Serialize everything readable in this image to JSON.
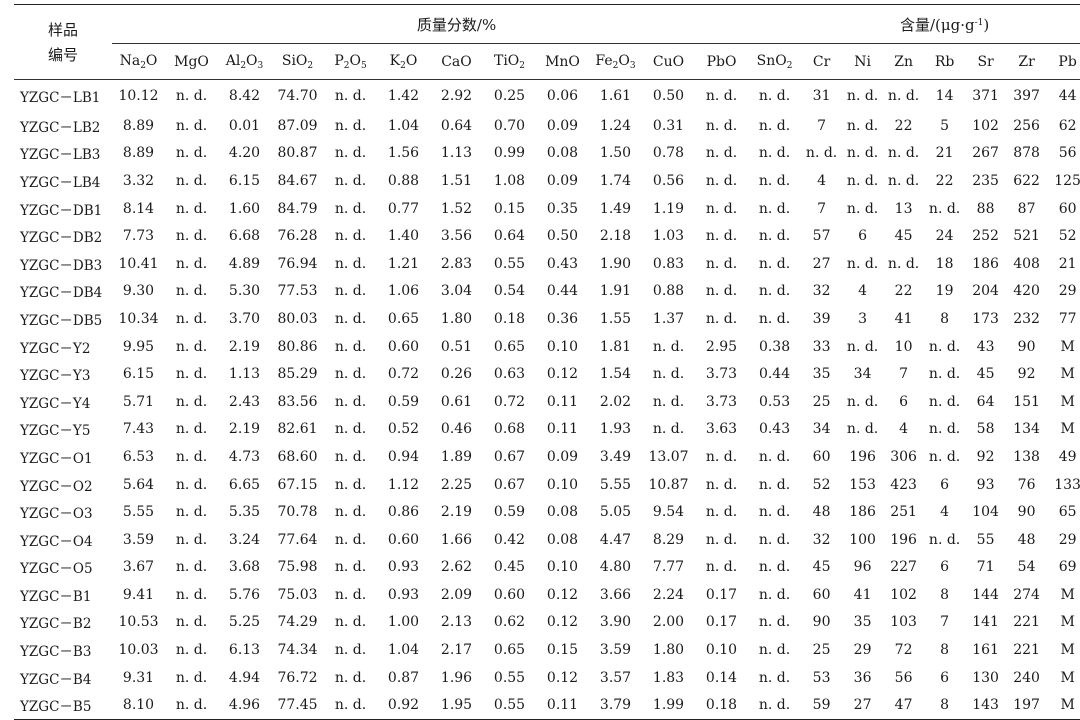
{
  "header": {
    "sample_label_line1": "样品",
    "sample_label_line2": "编号",
    "group_mass_fraction": "质量分数/%",
    "group_content": "含量/(μg·g",
    "group_content_sup": "-1",
    "group_content_close": ")"
  },
  "oxide_columns": [
    {
      "base": "Na",
      "sub1": "2",
      "rest": "O",
      "sub2": ""
    },
    {
      "base": "MgO",
      "sub1": "",
      "rest": "",
      "sub2": ""
    },
    {
      "base": "Al",
      "sub1": "2",
      "rest": "O",
      "sub2": "3"
    },
    {
      "base": "SiO",
      "sub1": "2",
      "rest": "",
      "sub2": ""
    },
    {
      "base": "P",
      "sub1": "2",
      "rest": "O",
      "sub2": "5"
    },
    {
      "base": "K",
      "sub1": "2",
      "rest": "O",
      "sub2": ""
    },
    {
      "base": "CaO",
      "sub1": "",
      "rest": "",
      "sub2": ""
    },
    {
      "base": "TiO",
      "sub1": "2",
      "rest": "",
      "sub2": ""
    },
    {
      "base": "MnO",
      "sub1": "",
      "rest": "",
      "sub2": ""
    },
    {
      "base": "Fe",
      "sub1": "2",
      "rest": "O",
      "sub2": "3"
    },
    {
      "base": "CuO",
      "sub1": "",
      "rest": "",
      "sub2": ""
    },
    {
      "base": "PbO",
      "sub1": "",
      "rest": "",
      "sub2": ""
    },
    {
      "base": "SnO",
      "sub1": "2",
      "rest": "",
      "sub2": ""
    }
  ],
  "element_columns": [
    "Cr",
    "Ni",
    "Zn",
    "Rb",
    "Sr",
    "Zr",
    "Pb"
  ],
  "rows": [
    [
      "YZGC－LB1",
      "10.12",
      "n. d.",
      "8.42",
      "74.70",
      "n. d.",
      "1.42",
      "2.92",
      "0.25",
      "0.06",
      "1.61",
      "0.50",
      "n. d.",
      "n. d.",
      "31",
      "n. d.",
      "n. d.",
      "14",
      "371",
      "397",
      "44"
    ],
    [
      "YZGC－LB2",
      "8.89",
      "n. d.",
      "0.01",
      "87.09",
      "n. d.",
      "1.04",
      "0.64",
      "0.70",
      "0.09",
      "1.24",
      "0.31",
      "n. d.",
      "n. d.",
      "7",
      "n. d.",
      "22",
      "5",
      "102",
      "256",
      "62"
    ],
    [
      "YZGC－LB3",
      "8.89",
      "n. d.",
      "4.20",
      "80.87",
      "n. d.",
      "1.56",
      "1.13",
      "0.99",
      "0.08",
      "1.50",
      "0.78",
      "n. d.",
      "n. d.",
      "n. d.",
      "n. d.",
      "n. d.",
      "21",
      "267",
      "878",
      "56"
    ],
    [
      "YZGC－LB4",
      "3.32",
      "n. d.",
      "6.15",
      "84.67",
      "n. d.",
      "0.88",
      "1.51",
      "1.08",
      "0.09",
      "1.74",
      "0.56",
      "n. d.",
      "n. d.",
      "4",
      "n. d.",
      "n. d.",
      "22",
      "235",
      "622",
      "125"
    ],
    [
      "YZGC－DB1",
      "8.14",
      "n. d.",
      "1.60",
      "84.79",
      "n. d.",
      "0.77",
      "1.52",
      "0.15",
      "0.35",
      "1.49",
      "1.19",
      "n. d.",
      "n. d.",
      "7",
      "n. d.",
      "13",
      "n. d.",
      "88",
      "87",
      "60"
    ],
    [
      "YZGC－DB2",
      "7.73",
      "n. d.",
      "6.68",
      "76.28",
      "n. d.",
      "1.40",
      "3.56",
      "0.64",
      "0.50",
      "2.18",
      "1.03",
      "n. d.",
      "n. d.",
      "57",
      "6",
      "45",
      "24",
      "252",
      "521",
      "52"
    ],
    [
      "YZGC－DB3",
      "10.41",
      "n. d.",
      "4.89",
      "76.94",
      "n. d.",
      "1.21",
      "2.83",
      "0.55",
      "0.43",
      "1.90",
      "0.83",
      "n. d.",
      "n. d.",
      "27",
      "n. d.",
      "n. d.",
      "18",
      "186",
      "408",
      "21"
    ],
    [
      "YZGC－DB4",
      "9.30",
      "n. d.",
      "5.30",
      "77.53",
      "n. d.",
      "1.06",
      "3.04",
      "0.54",
      "0.44",
      "1.91",
      "0.88",
      "n. d.",
      "n. d.",
      "32",
      "4",
      "22",
      "19",
      "204",
      "420",
      "29"
    ],
    [
      "YZGC－DB5",
      "10.34",
      "n. d.",
      "3.70",
      "80.03",
      "n. d.",
      "0.65",
      "1.80",
      "0.18",
      "0.36",
      "1.55",
      "1.37",
      "n. d.",
      "n. d.",
      "39",
      "3",
      "41",
      "8",
      "173",
      "232",
      "77"
    ],
    [
      "YZGC－Y2",
      "9.95",
      "n. d.",
      "2.19",
      "80.86",
      "n. d.",
      "0.60",
      "0.51",
      "0.65",
      "0.10",
      "1.81",
      "n. d.",
      "2.95",
      "0.38",
      "33",
      "n. d.",
      "10",
      "n. d.",
      "43",
      "90",
      "M"
    ],
    [
      "YZGC－Y3",
      "6.15",
      "n. d.",
      "1.13",
      "85.29",
      "n. d.",
      "0.72",
      "0.26",
      "0.63",
      "0.12",
      "1.54",
      "n. d.",
      "3.73",
      "0.44",
      "35",
      "34",
      "7",
      "n. d.",
      "45",
      "92",
      "M"
    ],
    [
      "YZGC－Y4",
      "5.71",
      "n. d.",
      "2.43",
      "83.56",
      "n. d.",
      "0.59",
      "0.61",
      "0.72",
      "0.11",
      "2.02",
      "n. d.",
      "3.73",
      "0.53",
      "25",
      "n. d.",
      "6",
      "n. d.",
      "64",
      "151",
      "M"
    ],
    [
      "YZGC－Y5",
      "7.43",
      "n. d.",
      "2.19",
      "82.61",
      "n. d.",
      "0.52",
      "0.46",
      "0.68",
      "0.11",
      "1.93",
      "n. d.",
      "3.63",
      "0.43",
      "34",
      "n. d.",
      "4",
      "n. d.",
      "58",
      "134",
      "M"
    ],
    [
      "YZGC－O1",
      "6.53",
      "n. d.",
      "4.73",
      "68.60",
      "n. d.",
      "0.94",
      "1.89",
      "0.67",
      "0.09",
      "3.49",
      "13.07",
      "n. d.",
      "n. d.",
      "60",
      "196",
      "306",
      "n. d.",
      "92",
      "138",
      "49"
    ],
    [
      "YZGC－O2",
      "5.64",
      "n. d.",
      "6.65",
      "67.15",
      "n. d.",
      "1.12",
      "2.25",
      "0.67",
      "0.10",
      "5.55",
      "10.87",
      "n. d.",
      "n. d.",
      "52",
      "153",
      "423",
      "6",
      "93",
      "76",
      "133"
    ],
    [
      "YZGC－O3",
      "5.55",
      "n. d.",
      "5.35",
      "70.78",
      "n. d.",
      "0.86",
      "2.19",
      "0.59",
      "0.08",
      "5.05",
      "9.54",
      "n. d.",
      "n. d.",
      "48",
      "186",
      "251",
      "4",
      "104",
      "90",
      "65"
    ],
    [
      "YZGC－O4",
      "3.59",
      "n. d.",
      "3.24",
      "77.64",
      "n. d.",
      "0.60",
      "1.66",
      "0.42",
      "0.08",
      "4.47",
      "8.29",
      "n. d.",
      "n. d.",
      "32",
      "100",
      "196",
      "n. d.",
      "55",
      "48",
      "29"
    ],
    [
      "YZGC－O5",
      "3.67",
      "n. d.",
      "3.68",
      "75.98",
      "n. d.",
      "0.93",
      "2.62",
      "0.45",
      "0.10",
      "4.80",
      "7.77",
      "n. d.",
      "n. d.",
      "45",
      "96",
      "227",
      "6",
      "71",
      "54",
      "69"
    ],
    [
      "YZGC－B1",
      "9.41",
      "n. d.",
      "5.76",
      "75.03",
      "n. d.",
      "0.93",
      "2.09",
      "0.60",
      "0.12",
      "3.66",
      "2.24",
      "0.17",
      "n. d.",
      "60",
      "41",
      "102",
      "8",
      "144",
      "274",
      "M"
    ],
    [
      "YZGC－B2",
      "10.53",
      "n. d.",
      "5.25",
      "74.29",
      "n. d.",
      "1.00",
      "2.13",
      "0.62",
      "0.12",
      "3.90",
      "2.00",
      "0.17",
      "n. d.",
      "90",
      "35",
      "103",
      "7",
      "141",
      "221",
      "M"
    ],
    [
      "YZGC－B3",
      "10.03",
      "n. d.",
      "6.13",
      "74.34",
      "n. d.",
      "1.04",
      "2.17",
      "0.65",
      "0.15",
      "3.59",
      "1.80",
      "0.10",
      "n. d.",
      "25",
      "29",
      "72",
      "8",
      "161",
      "221",
      "M"
    ],
    [
      "YZGC－B4",
      "9.31",
      "n. d.",
      "4.94",
      "76.72",
      "n. d.",
      "0.87",
      "1.96",
      "0.55",
      "0.12",
      "3.57",
      "1.83",
      "0.14",
      "n. d.",
      "53",
      "36",
      "56",
      "6",
      "130",
      "240",
      "M"
    ],
    [
      "YZGC－B5",
      "8.10",
      "n. d.",
      "4.96",
      "77.45",
      "n. d.",
      "0.92",
      "1.95",
      "0.55",
      "0.11",
      "3.79",
      "1.99",
      "0.18",
      "n. d.",
      "59",
      "27",
      "47",
      "8",
      "143",
      "197",
      "M"
    ]
  ]
}
